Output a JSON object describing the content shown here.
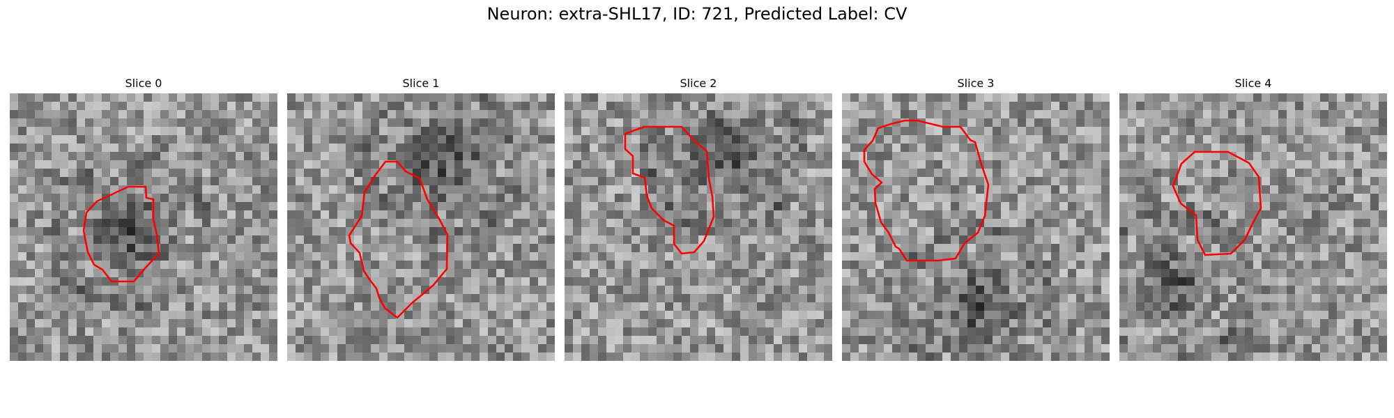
{
  "figure": {
    "title": "Neuron: extra-SHL17, ID: 721, Predicted Label: CV"
  },
  "slices": [
    {
      "title": "Slice 0",
      "seed": 11,
      "dark_center": [
        0.45,
        0.52
      ],
      "dark_radius": 0.22
    },
    {
      "title": "Slice 1",
      "seed": 23,
      "dark_center": [
        0.58,
        0.25
      ],
      "dark_radius": 0.25
    },
    {
      "title": "Slice 2",
      "seed": 37,
      "dark_center": [
        0.6,
        0.22
      ],
      "dark_radius": 0.22
    },
    {
      "title": "Slice 3",
      "seed": 41,
      "dark_center": [
        0.5,
        0.8
      ],
      "dark_radius": 0.22
    },
    {
      "title": "Slice 4",
      "seed": 53,
      "dark_center": [
        0.2,
        0.72
      ],
      "dark_radius": 0.18
    }
  ],
  "colors": {
    "contour": "#ff0000",
    "colormap": "gray"
  }
}
